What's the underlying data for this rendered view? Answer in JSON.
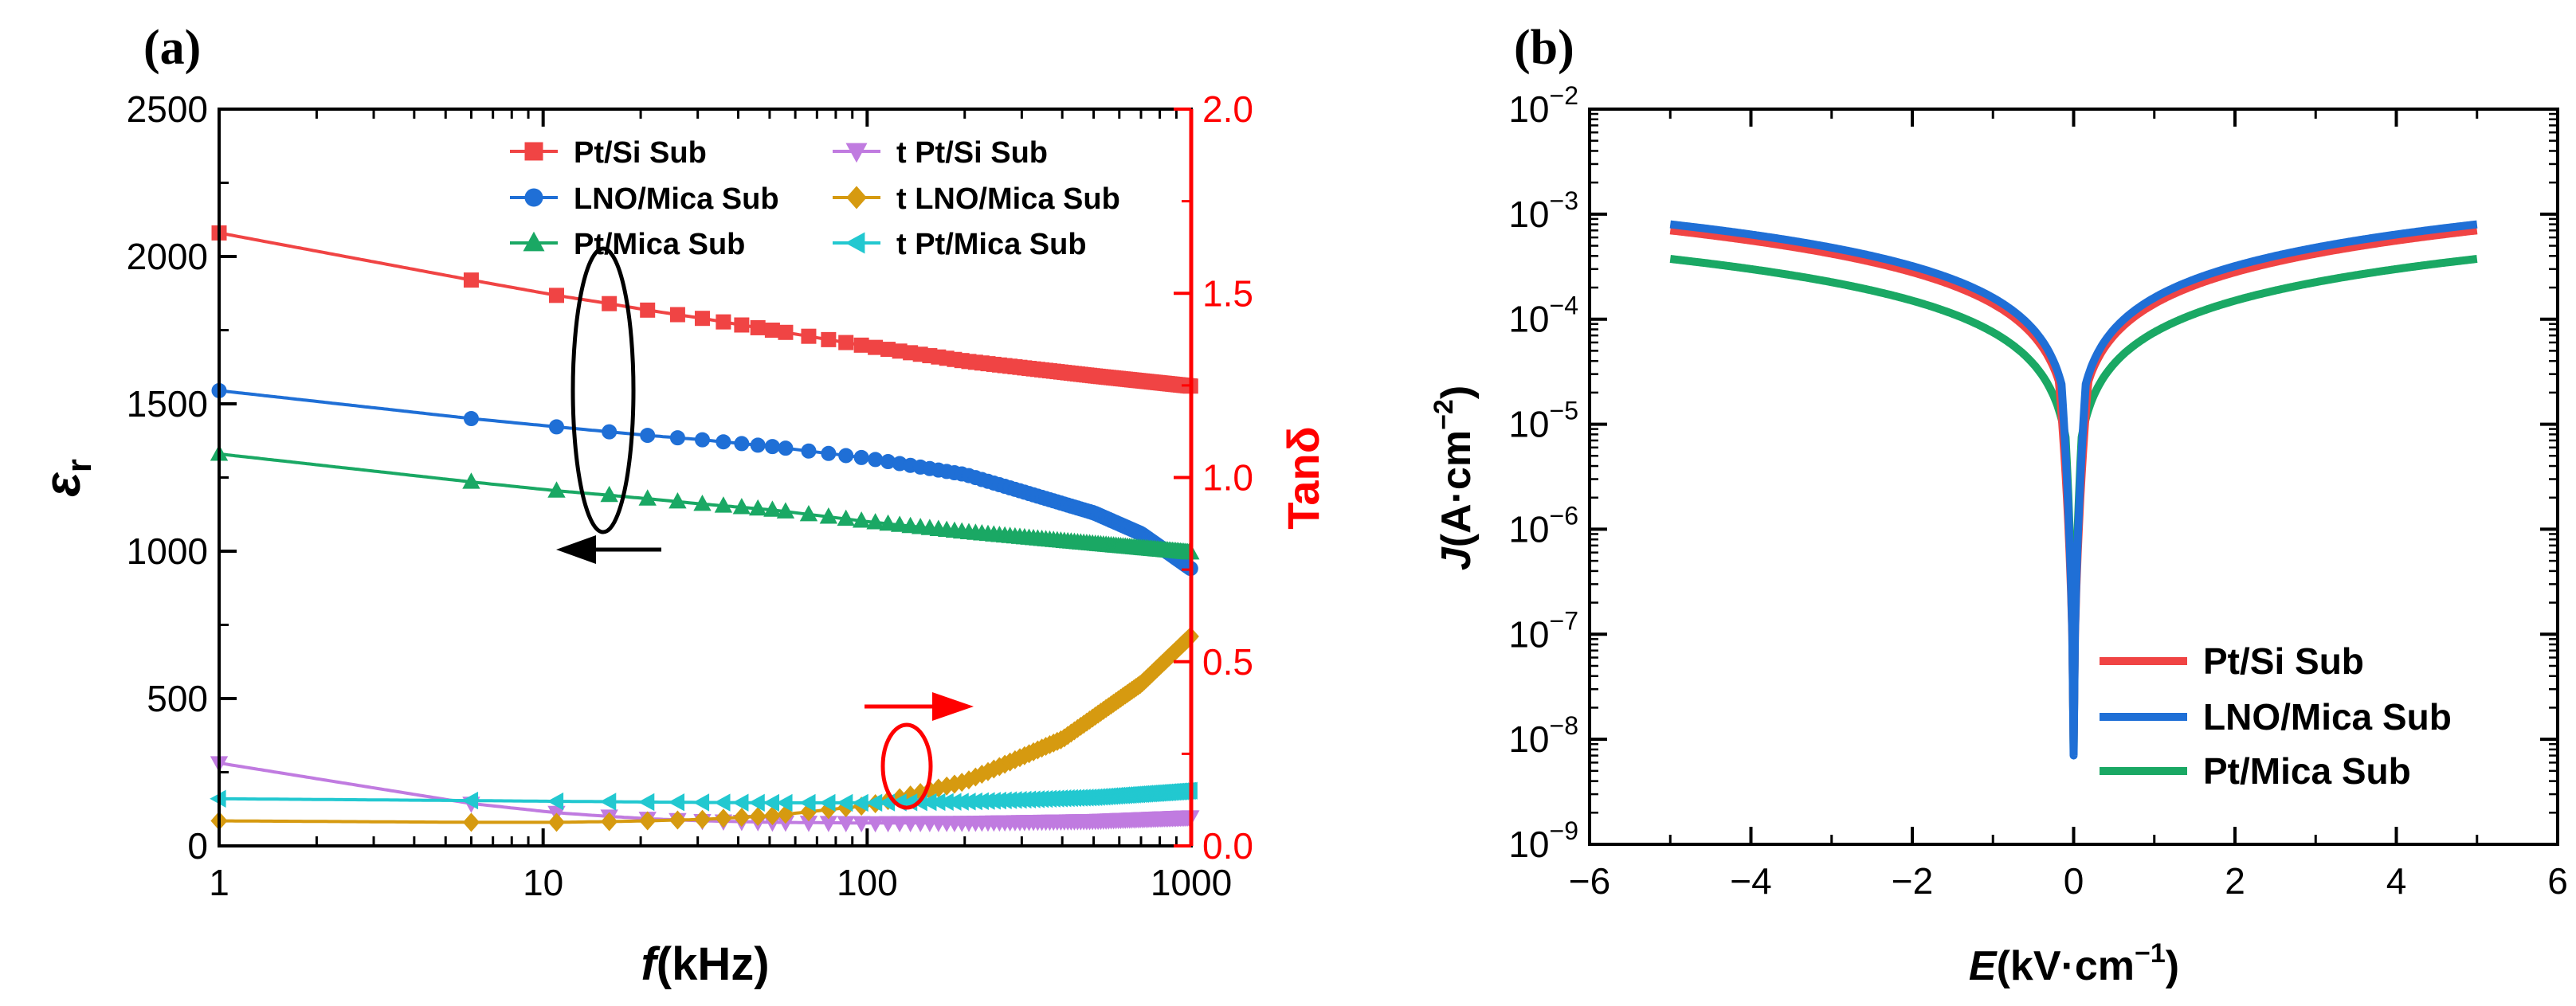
{
  "figure": {
    "panel_a_label": "(a)",
    "panel_b_label": "(b)"
  },
  "chart_data": [
    {
      "type": "line",
      "panel": "(a)",
      "xlabel": "f(kHz)",
      "xlabel_italic": "f",
      "xlabel_rest": "(kHz)",
      "xscale": "log",
      "xlim": [
        1,
        1000
      ],
      "xticks": [
        "1",
        "10",
        "100",
        "1000"
      ],
      "ylabel": "εr",
      "ylabel_main": "ε",
      "ylabel_sub": "r",
      "ylim": [
        0,
        2500
      ],
      "yticks": [
        "0",
        "500",
        "1000",
        "1500",
        "2000",
        "2500"
      ],
      "y2label": "Tanδ",
      "y2lim": [
        0,
        2
      ],
      "y2ticks": [
        "0.0",
        "0.5",
        "1.0",
        "1.5",
        "2.0"
      ],
      "legend_position": "top-inside",
      "colors": {
        "pt_si": "#f04444",
        "lno_mica": "#1f6fd6",
        "pt_mica": "#1aa864",
        "t_pt_si": "#c07be0",
        "t_lno_mica": "#d69a10",
        "t_pt_mica": "#22c8d0",
        "axis_right": "#ff0000",
        "annotation_left": "#000000",
        "annotation_right": "#ff0000"
      },
      "series": [
        {
          "name": "Pt/Si Sub",
          "axis": "left",
          "marker": "square",
          "x": [
            1,
            6,
            11,
            16,
            21,
            31,
            51,
            101,
            201,
            501,
            1000
          ],
          "values": [
            2080,
            1920,
            1868,
            1840,
            1818,
            1790,
            1750,
            1695,
            1645,
            1595,
            1560
          ]
        },
        {
          "name": "LNO/Mica Sub",
          "axis": "left",
          "marker": "circle",
          "x": [
            1,
            6,
            11,
            16,
            21,
            31,
            51,
            101,
            201,
            501,
            700,
            1000
          ],
          "values": [
            1545,
            1450,
            1422,
            1405,
            1393,
            1378,
            1355,
            1315,
            1260,
            1130,
            1060,
            940
          ]
        },
        {
          "name": "Pt/Mica Sub",
          "axis": "left",
          "marker": "triangle-up",
          "x": [
            1,
            6,
            11,
            16,
            21,
            31,
            51,
            101,
            201,
            501,
            1000
          ],
          "values": [
            1330,
            1235,
            1205,
            1190,
            1178,
            1160,
            1140,
            1100,
            1065,
            1025,
            995
          ]
        },
        {
          "name": "t Pt/Si Sub",
          "axis": "right",
          "marker": "triangle-down",
          "x": [
            1,
            6,
            11,
            16,
            21,
            31,
            51,
            101,
            201,
            501,
            1000
          ],
          "values": [
            0.225,
            0.115,
            0.09,
            0.08,
            0.074,
            0.068,
            0.064,
            0.062,
            0.063,
            0.068,
            0.078
          ]
        },
        {
          "name": "t LNO/Mica Sub",
          "axis": "right",
          "marker": "diamond",
          "x": [
            1,
            6,
            11,
            16,
            21,
            31,
            51,
            101,
            201,
            401,
            701,
            1000
          ],
          "values": [
            0.068,
            0.064,
            0.064,
            0.066,
            0.068,
            0.072,
            0.082,
            0.11,
            0.175,
            0.29,
            0.44,
            0.57
          ]
        },
        {
          "name": "t Pt/Mica Sub",
          "axis": "right",
          "marker": "triangle-left",
          "x": [
            1,
            6,
            11,
            16,
            21,
            31,
            51,
            101,
            201,
            501,
            1000
          ],
          "values": [
            0.128,
            0.123,
            0.121,
            0.12,
            0.119,
            0.118,
            0.117,
            0.117,
            0.12,
            0.132,
            0.15
          ]
        }
      ]
    },
    {
      "type": "line",
      "panel": "(b)",
      "xlabel": "E(kV·cm−1)",
      "xlabel_italic": "E",
      "xlabel_rest": "(kV·cm",
      "xlabel_sup": "−1",
      "xlabel_close": ")",
      "xlim": [
        -6,
        6
      ],
      "xticks": [
        "−6",
        "−4",
        "−2",
        "0",
        "2",
        "4",
        "6"
      ],
      "ylabel": "J(A·cm−2)",
      "ylabel_italic": "J",
      "ylabel_rest": "(A·cm",
      "ylabel_sup": "−2",
      "ylabel_close": ")",
      "yscale": "log",
      "ylim": [
        1e-09,
        0.01
      ],
      "yticks": [
        {
          "base": "10",
          "exp": "−9"
        },
        {
          "base": "10",
          "exp": "−8"
        },
        {
          "base": "10",
          "exp": "−7"
        },
        {
          "base": "10",
          "exp": "−6"
        },
        {
          "base": "10",
          "exp": "−5"
        },
        {
          "base": "10",
          "exp": "−4"
        },
        {
          "base": "10",
          "exp": "−3"
        },
        {
          "base": "10",
          "exp": "−2"
        }
      ],
      "legend_position": "bottom-right",
      "colors": {
        "pt_si": "#f04444",
        "lno_mica": "#1f6fd6",
        "pt_mica": "#1aa864"
      },
      "series": [
        {
          "name": "Pt/Si Sub",
          "a": 0.00014,
          "n": 1.0,
          "cusp": 0.18,
          "floor": 9e-09
        },
        {
          "name": "LNO/Mica Sub",
          "a": 0.00016,
          "n": 1.0,
          "cusp": 0.15,
          "floor": 7e-09
        },
        {
          "name": "Pt/Mica Sub",
          "a": 7.5e-05,
          "n": 1.0,
          "cusp": 0.1,
          "floor": 8e-09
        }
      ]
    }
  ]
}
